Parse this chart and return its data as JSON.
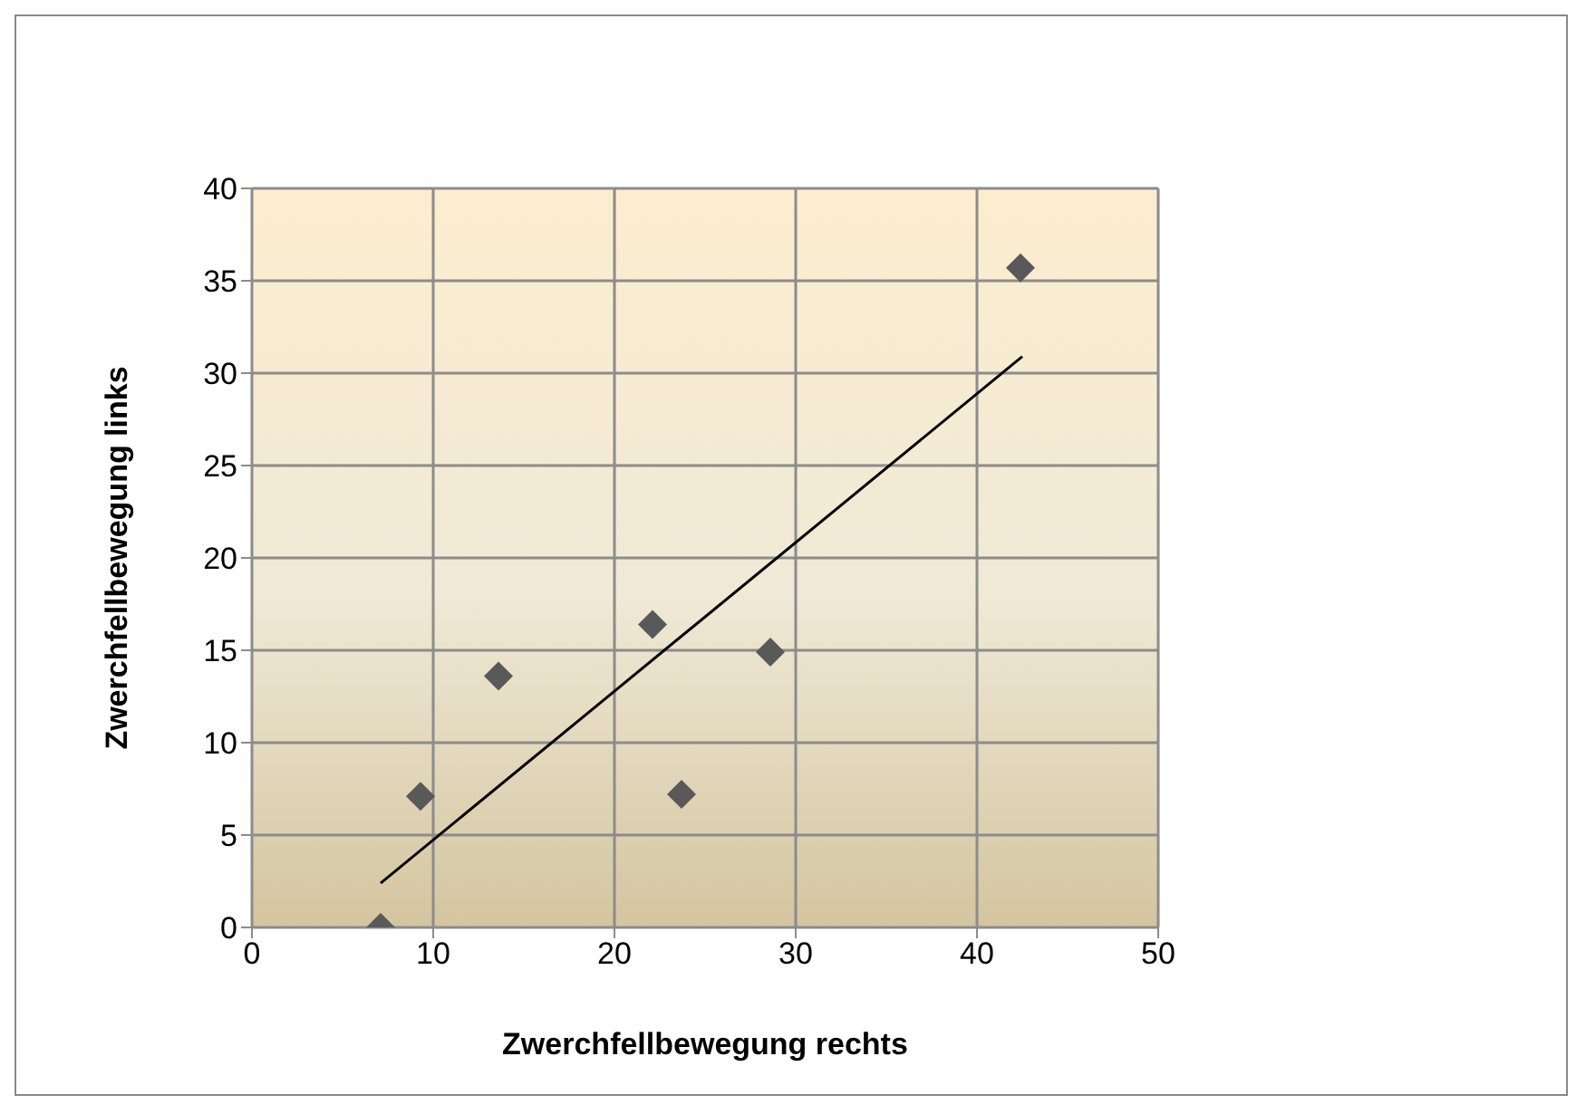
{
  "chart_data": {
    "type": "scatter",
    "xlabel": "Zwerchfellbewegung rechts",
    "ylabel": "Zwerchfellbewegung links",
    "series": [
      {
        "color": "#595959",
        "marker": "diamond",
        "x": [
          7.1,
          9.3,
          13.6,
          22.1,
          23.7,
          28.6,
          42.4
        ],
        "values": [
          0,
          7.1,
          13.6,
          16.4,
          7.2,
          14.9,
          35.7
        ]
      },
      {
        "type": "line",
        "color": "#000000",
        "marker": "none",
        "x": [
          7.1,
          42.5
        ],
        "values": [
          2.4,
          30.9
        ]
      }
    ],
    "xlim": [
      0,
      50
    ],
    "xticks": [
      0,
      10,
      20,
      30,
      40,
      50
    ],
    "ylim": [
      0,
      40
    ],
    "yticks": [
      0,
      5,
      10,
      15,
      20,
      25,
      30,
      35,
      40
    ],
    "grid": true,
    "legend": false
  }
}
